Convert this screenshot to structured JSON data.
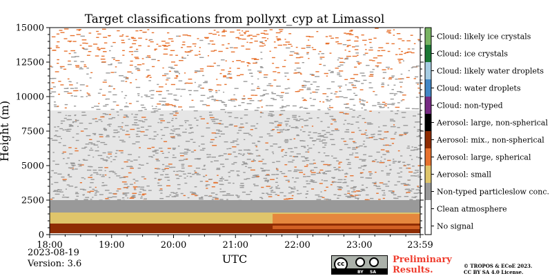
{
  "chart_data": {
    "type": "heatmap",
    "title": "Target classifications from pollyxt_cyp at Limassol",
    "xlabel": "UTC",
    "ylabel": "Height (m)",
    "x_ticks": [
      "18:00",
      "19:00",
      "20:00",
      "21:00",
      "22:00",
      "23:00",
      "23:59"
    ],
    "x_range_hours": [
      18.0,
      23.983
    ],
    "y_ticks": [
      0,
      2500,
      5000,
      7500,
      10000,
      12500,
      15000
    ],
    "y_range": [
      0,
      15000
    ],
    "grid": false,
    "legend_position": "right colorbar",
    "classes": [
      {
        "label": "No signal",
        "color": "#ffffff"
      },
      {
        "label": "Clean atmosphere",
        "color": "#ffffff"
      },
      {
        "label": "Non-typed particleslow conc.",
        "color": "#999999"
      },
      {
        "label": "Aerosol: small",
        "color": "#dfc56b"
      },
      {
        "label": "Aerosol: large, spherical",
        "color": "#e7722e"
      },
      {
        "label": "Aerosol: mix., non-spherical",
        "color": "#8f2d04"
      },
      {
        "label": "Aerosol: large, non-spherical",
        "color": "#000000"
      },
      {
        "label": "Cloud: non-typed",
        "color": "#762a83"
      },
      {
        "label": "Cloud: water droplets",
        "color": "#4287c6"
      },
      {
        "label": "Cloud: likely water droplets",
        "color": "#a6cde3"
      },
      {
        "label": "Cloud: ice crystals",
        "color": "#1b7836"
      },
      {
        "label": "Cloud: likely ice crystals",
        "color": "#78b463"
      }
    ],
    "layers": [
      {
        "class": "Aerosol: mix., non-spherical",
        "from_m": 100,
        "to_m": 800,
        "time": [
          18.0,
          23.983
        ]
      },
      {
        "class": "Aerosol: small",
        "from_m": 800,
        "to_m": 1600,
        "time": [
          18.0,
          23.983
        ]
      },
      {
        "class": "Aerosol: large, spherical",
        "from_m": 400,
        "to_m": 1500,
        "time": [
          21.6,
          23.983
        ]
      },
      {
        "class": "Non-typed particleslow conc.",
        "from_m": 1600,
        "to_m": 2500,
        "time": [
          18.0,
          23.983
        ]
      },
      {
        "class": "Non-typed particleslow conc.",
        "from_m": 2500,
        "to_m": 9000,
        "time": [
          18.0,
          23.983
        ]
      },
      {
        "class": "Aerosol: large, spherical",
        "from_m": 9000,
        "to_m": 15000,
        "time": [
          18.0,
          23.983
        ]
      }
    ]
  },
  "footer": {
    "date": "2023-08-19",
    "version": "Version: 3.6",
    "prelim_line1": "Preliminary",
    "prelim_line2": "Results.",
    "copyright_line1": "© TROPOS & ECoE 2023.",
    "copyright_line2": "CC BY SA 4.0 License.",
    "badge_cc": "cc",
    "badge_by": "BY",
    "badge_sa": "SA"
  }
}
